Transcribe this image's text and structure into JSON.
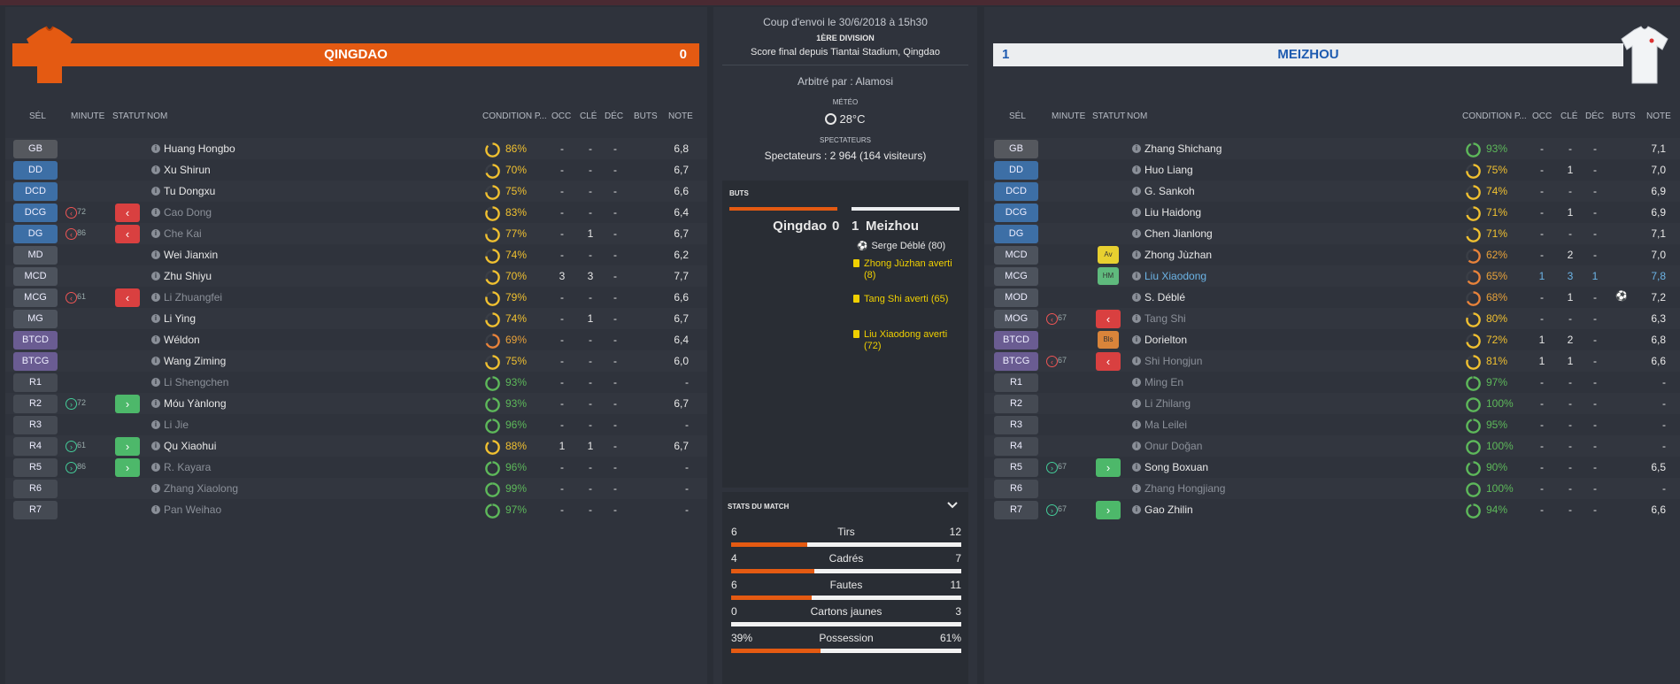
{
  "match": {
    "kickoff": "Coup d'envoi le 30/6/2018 à 15h30",
    "division": "1ÈRE DIVISION",
    "final_score_line": "Score final depuis Tiantai Stadium, Qingdao",
    "referee": "Arbitré par : Alamosi",
    "weather_label": "MÉTÉO",
    "temperature": "28°C",
    "spectators_label": "SPECTATEURS",
    "spectators": "Spectateurs : 2 964 (164 visiteurs)"
  },
  "home": {
    "name": "QINGDAO",
    "score": "0",
    "color": "#e45a12"
  },
  "away": {
    "name": "MEIZHOU",
    "score": "1",
    "color": "#eceef0"
  },
  "headers": {
    "sel": "SÉL",
    "minute": "MINUTE",
    "statut": "STATUT",
    "nom": "NOM",
    "condition": "CONDITION P...",
    "occ": "OCC",
    "cle": "CLÉ",
    "dec": "DÉC",
    "buts": "BUTS",
    "note": "NOTE"
  },
  "home_players": [
    {
      "pos": "GB",
      "name": "Huang Hongbo",
      "cond": "86%",
      "occ": "-",
      "cle": "-",
      "dec": "-",
      "note": "6,8",
      "cond_value": 0.86
    },
    {
      "pos": "DD",
      "name": "Xu Shirun",
      "cond": "70%",
      "occ": "-",
      "cle": "-",
      "dec": "-",
      "note": "6,7",
      "cond_value": 0.7
    },
    {
      "pos": "DCD",
      "name": "Tu Dongxu",
      "cond": "75%",
      "occ": "-",
      "cle": "-",
      "dec": "-",
      "note": "6,6",
      "cond_value": 0.75
    },
    {
      "pos": "DCG",
      "name": "Cao Dong",
      "cond": "83%",
      "occ": "-",
      "cle": "-",
      "dec": "-",
      "note": "6,4",
      "minute": "72",
      "sub": "off",
      "cond_value": 0.83
    },
    {
      "pos": "DG",
      "name": "Che Kai",
      "cond": "77%",
      "occ": "-",
      "cle": "1",
      "dec": "-",
      "note": "6,7",
      "minute": "86",
      "sub": "off",
      "cond_value": 0.77
    },
    {
      "pos": "MD",
      "name": "Wei Jianxin",
      "cond": "74%",
      "occ": "-",
      "cle": "-",
      "dec": "-",
      "note": "6,2",
      "cond_value": 0.74
    },
    {
      "pos": "MCD",
      "name": "Zhu Shiyu",
      "cond": "70%",
      "occ": "3",
      "cle": "3",
      "dec": "-",
      "note": "7,7",
      "cond_value": 0.7
    },
    {
      "pos": "MCG",
      "name": "Li Zhuangfei",
      "cond": "79%",
      "occ": "-",
      "cle": "-",
      "dec": "-",
      "note": "6,6",
      "minute": "61",
      "sub": "off",
      "cond_value": 0.79
    },
    {
      "pos": "MG",
      "name": "Li Ying",
      "cond": "74%",
      "occ": "-",
      "cle": "1",
      "dec": "-",
      "note": "6,7",
      "cond_value": 0.74
    },
    {
      "pos": "BTCD",
      "name": "Wéldon",
      "cond": "69%",
      "occ": "-",
      "cle": "-",
      "dec": "-",
      "note": "6,4",
      "cond_value": 0.69
    },
    {
      "pos": "BTCG",
      "name": "Wang Ziming",
      "cond": "75%",
      "occ": "-",
      "cle": "-",
      "dec": "-",
      "note": "6,0",
      "cond_value": 0.75
    },
    {
      "pos": "R1",
      "name": "Li Shengchen",
      "cond": "93%",
      "occ": "-",
      "cle": "-",
      "dec": "-",
      "note": "-",
      "cond_value": 0.93
    },
    {
      "pos": "R2",
      "name": "Móu Yànlong",
      "cond": "93%",
      "occ": "-",
      "cle": "-",
      "dec": "-",
      "note": "6,7",
      "minute": "72",
      "sub": "on",
      "cond_value": 0.93
    },
    {
      "pos": "R3",
      "name": "Li Jie",
      "cond": "96%",
      "occ": "-",
      "cle": "-",
      "dec": "-",
      "note": "-",
      "cond_value": 0.96
    },
    {
      "pos": "R4",
      "name": "Qu Xiaohui",
      "cond": "88%",
      "occ": "1",
      "cle": "1",
      "dec": "-",
      "note": "6,7",
      "minute": "61",
      "sub": "on",
      "cond_value": 0.88
    },
    {
      "pos": "R5",
      "name": "R. Kayara",
      "cond": "96%",
      "occ": "-",
      "cle": "-",
      "dec": "-",
      "note": "-",
      "minute": "86",
      "sub": "on",
      "cond_value": 0.96
    },
    {
      "pos": "R6",
      "name": "Zhang Xiaolong",
      "cond": "99%",
      "occ": "-",
      "cle": "-",
      "dec": "-",
      "note": "-",
      "cond_value": 0.99
    },
    {
      "pos": "R7",
      "name": "Pan Weihao",
      "cond": "97%",
      "occ": "-",
      "cle": "-",
      "dec": "-",
      "note": "-",
      "cond_value": 0.97
    }
  ],
  "away_players": [
    {
      "pos": "GB",
      "name": "Zhang Shichang",
      "cond": "93%",
      "occ": "-",
      "cle": "-",
      "dec": "-",
      "note": "7,1",
      "cond_value": 0.93
    },
    {
      "pos": "DD",
      "name": "Huo Liang",
      "cond": "75%",
      "occ": "-",
      "cle": "1",
      "dec": "-",
      "note": "7,0",
      "cond_value": 0.75
    },
    {
      "pos": "DCD",
      "name": "G. Sankoh",
      "cond": "74%",
      "occ": "-",
      "cle": "-",
      "dec": "-",
      "note": "6,9",
      "cond_value": 0.74
    },
    {
      "pos": "DCG",
      "name": "Liu Haidong",
      "cond": "71%",
      "occ": "-",
      "cle": "1",
      "dec": "-",
      "note": "6,9",
      "cond_value": 0.71
    },
    {
      "pos": "DG",
      "name": "Chen Jianlong",
      "cond": "71%",
      "occ": "-",
      "cle": "-",
      "dec": "-",
      "note": "7,1",
      "cond_value": 0.71
    },
    {
      "pos": "MCD",
      "name": "Zhong Jùzhan",
      "cond": "62%",
      "occ": "-",
      "cle": "2",
      "dec": "-",
      "note": "7,0",
      "badge": "Av",
      "cond_value": 0.62
    },
    {
      "pos": "MCG",
      "name": "Liu Xiaodong",
      "cond": "65%",
      "occ": "1",
      "cle": "3",
      "dec": "1",
      "note": "7,8",
      "badge": "HM",
      "cond_value": 0.65
    },
    {
      "pos": "MOD",
      "name": "S. Déblé",
      "cond": "68%",
      "occ": "-",
      "cle": "1",
      "dec": "-",
      "note": "7,2",
      "goal": true,
      "cond_value": 0.68
    },
    {
      "pos": "MOG",
      "name": "Tang Shi",
      "cond": "80%",
      "occ": "-",
      "cle": "-",
      "dec": "-",
      "note": "6,3",
      "minute": "67",
      "sub": "off",
      "cond_value": 0.8
    },
    {
      "pos": "BTCD",
      "name": "Dorielton",
      "cond": "72%",
      "occ": "1",
      "cle": "2",
      "dec": "-",
      "note": "6,8",
      "badge": "Bls",
      "cond_value": 0.72
    },
    {
      "pos": "BTCG",
      "name": "Shi Hongjun",
      "cond": "81%",
      "occ": "1",
      "cle": "1",
      "dec": "-",
      "note": "6,6",
      "minute": "67",
      "sub": "off",
      "cond_value": 0.81
    },
    {
      "pos": "R1",
      "name": "Ming En",
      "cond": "97%",
      "occ": "-",
      "cle": "-",
      "dec": "-",
      "note": "-",
      "cond_value": 0.97
    },
    {
      "pos": "R2",
      "name": "Li Zhilang",
      "cond": "100%",
      "occ": "-",
      "cle": "-",
      "dec": "-",
      "note": "-",
      "cond_value": 1.0
    },
    {
      "pos": "R3",
      "name": "Ma Leilei",
      "cond": "95%",
      "occ": "-",
      "cle": "-",
      "dec": "-",
      "note": "-",
      "cond_value": 0.95
    },
    {
      "pos": "R4",
      "name": "Onur Doğan",
      "cond": "100%",
      "occ": "-",
      "cle": "-",
      "dec": "-",
      "note": "-",
      "cond_value": 1.0
    },
    {
      "pos": "R5",
      "name": "Song Boxuan",
      "cond": "90%",
      "occ": "-",
      "cle": "-",
      "dec": "-",
      "note": "6,5",
      "minute": "67",
      "sub": "on",
      "cond_value": 0.9
    },
    {
      "pos": "R6",
      "name": "Zhang Hongjiang",
      "cond": "100%",
      "occ": "-",
      "cle": "-",
      "dec": "-",
      "note": "-",
      "cond_value": 1.0
    },
    {
      "pos": "R7",
      "name": "Gao Zhilin",
      "cond": "94%",
      "occ": "-",
      "cle": "-",
      "dec": "-",
      "note": "6,6",
      "minute": "67",
      "sub": "on",
      "cond_value": 0.94
    }
  ],
  "goals": {
    "title": "BUTS",
    "home": "Qingdao",
    "home_score": "0",
    "away_score": "1",
    "away": "Meizhou",
    "events": [
      {
        "type": "goal",
        "text": "Serge Déblé (80)"
      },
      {
        "type": "card",
        "text": "Zhong Jùzhan averti (8)"
      },
      {
        "type": "card",
        "text": "Tang Shi averti (65)"
      },
      {
        "type": "card",
        "text": "Liu Xiaodong averti (72)"
      }
    ]
  },
  "match_stats": {
    "title": "STATS DU MATCH",
    "rows": [
      {
        "label": "Tirs",
        "home": "6",
        "away": "12",
        "home_share": 0.33
      },
      {
        "label": "Cadrés",
        "home": "4",
        "away": "7",
        "home_share": 0.36
      },
      {
        "label": "Fautes",
        "home": "6",
        "away": "11",
        "home_share": 0.35
      },
      {
        "label": "Cartons jaunes",
        "home": "0",
        "away": "3",
        "home_share": 0.0
      },
      {
        "label": "Possession",
        "home": "39%",
        "away": "61%",
        "home_share": 0.39
      }
    ]
  },
  "colors": {
    "pos_gk": "#55585e",
    "pos_def": "#3d6fa6",
    "pos_mid": "#4d535d",
    "pos_fwd": "#6a5c92",
    "pos_res": "#454a53",
    "cond_orange": "#f0c030",
    "cond_green": "#5db85a"
  }
}
